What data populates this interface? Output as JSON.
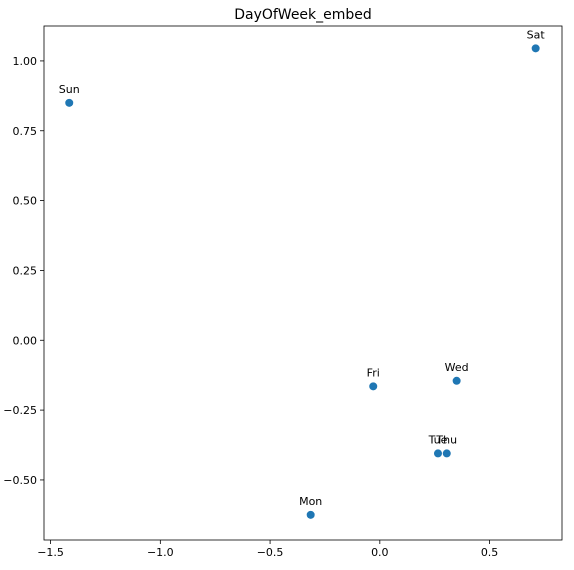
{
  "chart_data": {
    "type": "scatter",
    "title": "DayOfWeek_embed",
    "xlabel": "",
    "ylabel": "",
    "xlim": [
      -1.53,
      0.83
    ],
    "ylim": [
      -0.715,
      1.125
    ],
    "x_ticks": [
      -1.5,
      -1.0,
      -0.5,
      0.0,
      0.5
    ],
    "x_tick_labels": [
      "−1.5",
      "−1.0",
      "−0.5",
      "0.0",
      "0.5"
    ],
    "y_ticks": [
      1.0,
      0.75,
      0.5,
      0.25,
      0.0,
      -0.25,
      -0.5
    ],
    "y_tick_labels": [
      "1.00",
      "0.75",
      "0.50",
      "0.25",
      "0.00",
      "−0.25",
      "−0.50"
    ],
    "grid": false,
    "point_color": "#1f77b4",
    "points": [
      {
        "label": "Sun",
        "x": -1.415,
        "y": 0.85
      },
      {
        "label": "Sat",
        "x": 0.71,
        "y": 1.045
      },
      {
        "label": "Fri",
        "x": -0.03,
        "y": -0.165
      },
      {
        "label": "Wed",
        "x": 0.35,
        "y": -0.145
      },
      {
        "label": "Tue",
        "x": 0.265,
        "y": -0.405
      },
      {
        "label": "Thu",
        "x": 0.305,
        "y": -0.405
      },
      {
        "label": "Mon",
        "x": -0.315,
        "y": -0.625
      }
    ]
  }
}
